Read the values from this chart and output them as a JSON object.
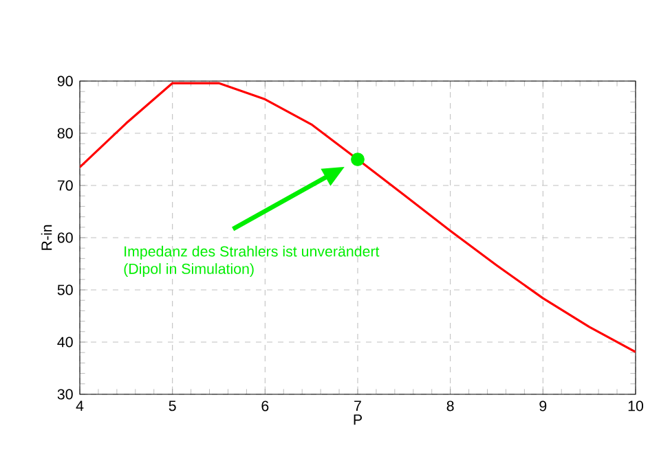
{
  "chart_data": {
    "type": "line",
    "xlabel": "P",
    "ylabel": "R-in",
    "xlim": [
      4,
      10
    ],
    "ylim": [
      30,
      90
    ],
    "xticks": [
      4,
      5,
      6,
      7,
      8,
      9,
      10
    ],
    "yticks": [
      30,
      40,
      50,
      60,
      70,
      80,
      90
    ],
    "grid": true,
    "line_style": "solid",
    "series": [
      {
        "color": "#ff0000",
        "marker": "none",
        "x": [
          4,
          4.5,
          5,
          5.5,
          6,
          6.5,
          7,
          7.5,
          8,
          8.5,
          9,
          9.5,
          10
        ],
        "values": [
          73.5,
          81.9,
          89.6,
          89.6,
          86.5,
          81.7,
          75,
          68.2,
          61.3,
          54.7,
          48.4,
          42.9,
          38.1
        ]
      },
      {
        "type": "scatter",
        "color": "#00ee00",
        "marker": "circle",
        "x": [
          7
        ],
        "values": [
          75
        ]
      }
    ],
    "annotations": [
      "Impedanz des Strahlers ist unverändert\n(Dipol in Simulation)"
    ]
  }
}
